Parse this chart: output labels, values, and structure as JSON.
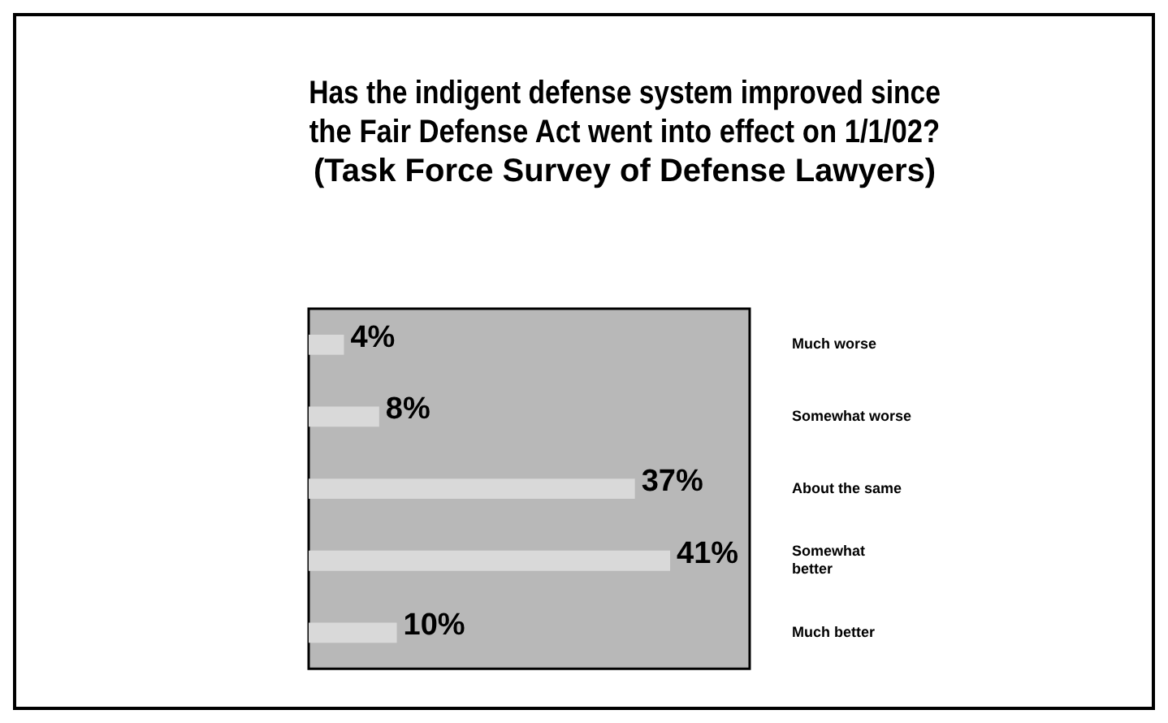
{
  "chart_data": {
    "type": "bar",
    "orientation": "horizontal",
    "title": "Has the indigent defense system improved since the Fair Defense Act went into effect on 1/1/02? (Task Force Survey of Defense Lawyers)",
    "categories": [
      "Much worse",
      "Somewhat worse",
      "About the same",
      "Somewhat better",
      "Much better"
    ],
    "values": [
      4,
      8,
      37,
      41,
      10
    ],
    "value_labels": [
      "4%",
      "8%",
      "37%",
      "41%",
      "10%"
    ],
    "color": "#d9d9d9"
  }
}
